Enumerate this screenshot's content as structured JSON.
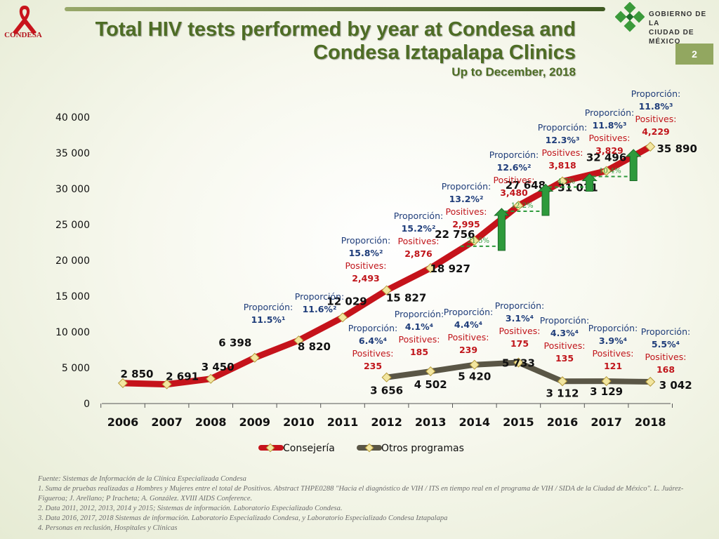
{
  "header": {
    "title_line1": "Total HIV tests performed by year at Condesa and",
    "title_line2": "Condesa Iztapalapa Clinics",
    "subtitle": "Up to December, 2018",
    "page_number": "2",
    "condesa_logo_text": "CONDESA",
    "gov_logo_line1": "GOBIERNO DE LA",
    "gov_logo_line2": "CIUDAD DE MÉXICO"
  },
  "colors": {
    "consejeria": "#c5131b",
    "otros": "#5a5646",
    "marker": "#f2e6a0",
    "proportion_label": "#1f3d7a",
    "positives_label": "#c0151b",
    "growth_arrow": "#2e9a3c",
    "growth_text": "#2e9a3c",
    "title": "#4e6d25"
  },
  "chart_data": {
    "type": "line",
    "categories": [
      "2006",
      "2007",
      "2008",
      "2009",
      "2010",
      "2011",
      "2012",
      "2013",
      "2014",
      "2015",
      "2016",
      "2017",
      "2018"
    ],
    "ylim": [
      0,
      40000
    ],
    "yticks": [
      "0",
      "5 000",
      "10 000",
      "15 000",
      "20 000",
      "25 000",
      "30 000",
      "35 000",
      "40 000"
    ],
    "ytick_values": [
      0,
      5000,
      10000,
      15000,
      20000,
      25000,
      30000,
      35000,
      40000
    ],
    "xlabel": "",
    "ylabel": "",
    "series": [
      {
        "name": "Consejería",
        "values": [
          2850,
          2691,
          3450,
          6398,
          8820,
          12029,
          15827,
          18927,
          22756,
          27648,
          31031,
          32496,
          35890
        ],
        "value_labels": [
          "2 850",
          "2 691",
          "3 450",
          "6 398",
          "8 820",
          "12 029",
          "15 827",
          "18 927",
          "22 756",
          "27 648",
          "31 031",
          "32 496",
          "35 890"
        ]
      },
      {
        "name": "Otros programas",
        "values": [
          null,
          null,
          null,
          null,
          null,
          null,
          3656,
          4502,
          5420,
          5733,
          3112,
          3129,
          3042
        ],
        "value_labels": [
          "",
          "",
          "",
          "",
          "",
          "",
          "3 656",
          "4 502",
          "5 420",
          "5 733",
          "3 112",
          "3 129",
          "3 042"
        ]
      }
    ],
    "annotations_consejeria": [
      {
        "year": "2010",
        "proportion_label": "Proporción:",
        "proportion": "11.5%¹"
      },
      {
        "year": "2011",
        "proportion_label": "Proporción:",
        "proportion": "11.6%²"
      },
      {
        "year": "2012",
        "proportion_label": "Proporción:",
        "proportion": "15.8%²",
        "positives_label": "Positives:",
        "positives": "2,493"
      },
      {
        "year": "2013",
        "proportion_label": "Proporción:",
        "proportion": "15.2%²",
        "positives_label": "Positives:",
        "positives": "2,876"
      },
      {
        "year": "2014",
        "proportion_label": "Proporción:",
        "proportion": "13.2%²",
        "positives_label": "Positives:",
        "positives": "2,995"
      },
      {
        "year": "2015",
        "proportion_label": "Proporción:",
        "proportion": "12.6%²",
        "positives_label": "Positives:",
        "positives": "3,480"
      },
      {
        "year": "2016",
        "proportion_label": "Proporción:",
        "proportion": "12.3%³",
        "positives_label": "Positives:",
        "positives": "3,818"
      },
      {
        "year": "2017",
        "proportion_label": "Proporción:",
        "proportion": "11.8%³",
        "positives_label": "Positives:",
        "positives": "3,829"
      },
      {
        "year": "2018",
        "proportion_label": "Proporción:",
        "proportion": "11.8%³",
        "positives_label": "Positives:",
        "positives": "4,229"
      }
    ],
    "annotations_otros": [
      {
        "year": "2012",
        "proportion_label": "Proporción:",
        "proportion": "6.4%⁴",
        "positives_label": "Positives:",
        "positives": "235"
      },
      {
        "year": "2013",
        "proportion_label": "Proporción:",
        "proportion": "4.1%⁴",
        "positives_label": "Positives:",
        "positives": "185"
      },
      {
        "year": "2014",
        "proportion_label": "Proporción:",
        "proportion": "4.4%⁴",
        "positives_label": "Positives:",
        "positives": "239"
      },
      {
        "year": "2015",
        "proportion_label": "Proporción:",
        "proportion": "3.1%⁴",
        "positives_label": "Positives:",
        "positives": "175"
      },
      {
        "year": "2016",
        "proportion_label": "Proporción:",
        "proportion": "4.3%⁴",
        "positives_label": "Positives:",
        "positives": "135"
      },
      {
        "year": "2017",
        "proportion_label": "Proporción:",
        "proportion": "3.9%⁴",
        "positives_label": "Positives:",
        "positives": "121"
      },
      {
        "year": "2018",
        "proportion_label": "Proporción:",
        "proportion": "5.5%⁴",
        "positives_label": "Positives:",
        "positives": "168"
      }
    ],
    "growth": [
      {
        "from": "2014",
        "to": "2015",
        "label": "21.5%"
      },
      {
        "from": "2015",
        "to": "2016",
        "label": "12.2%"
      },
      {
        "from": "2016",
        "to": "2017",
        "label": "4.7%"
      },
      {
        "from": "2017",
        "to": "2018",
        "label": "10.4%"
      }
    ],
    "legend_position": "bottom",
    "grid": false
  },
  "footnotes": [
    "Fuente: Sistemas de Información de la Clínica Especializada Condesa",
    "1. Suma de pruebas realizadas a Hombres y Mujeres entre el total de Positivos. Abstract THPE0288 \"Hacia el diagnóstico de VIH / ITS en tiempo real en el programa de VIH / SIDA de la Ciudad de México\". L. Juárez-Figueroa; J. Arellano; P Iracheta; A. González. XVIII AIDS Conference.",
    "2. Data 2011, 2012, 2013, 2014 y 2015; Sistemas de información. Laboratorio Especializado Condesa.",
    "3. Data  2016, 2017, 2018 Sistemas de información. Laboratorio Especializado Condesa, y Laboratorio Especializado Condesa Iztapalapa",
    "4. Personas en reclusión, Hospitales y Clínicas"
  ]
}
